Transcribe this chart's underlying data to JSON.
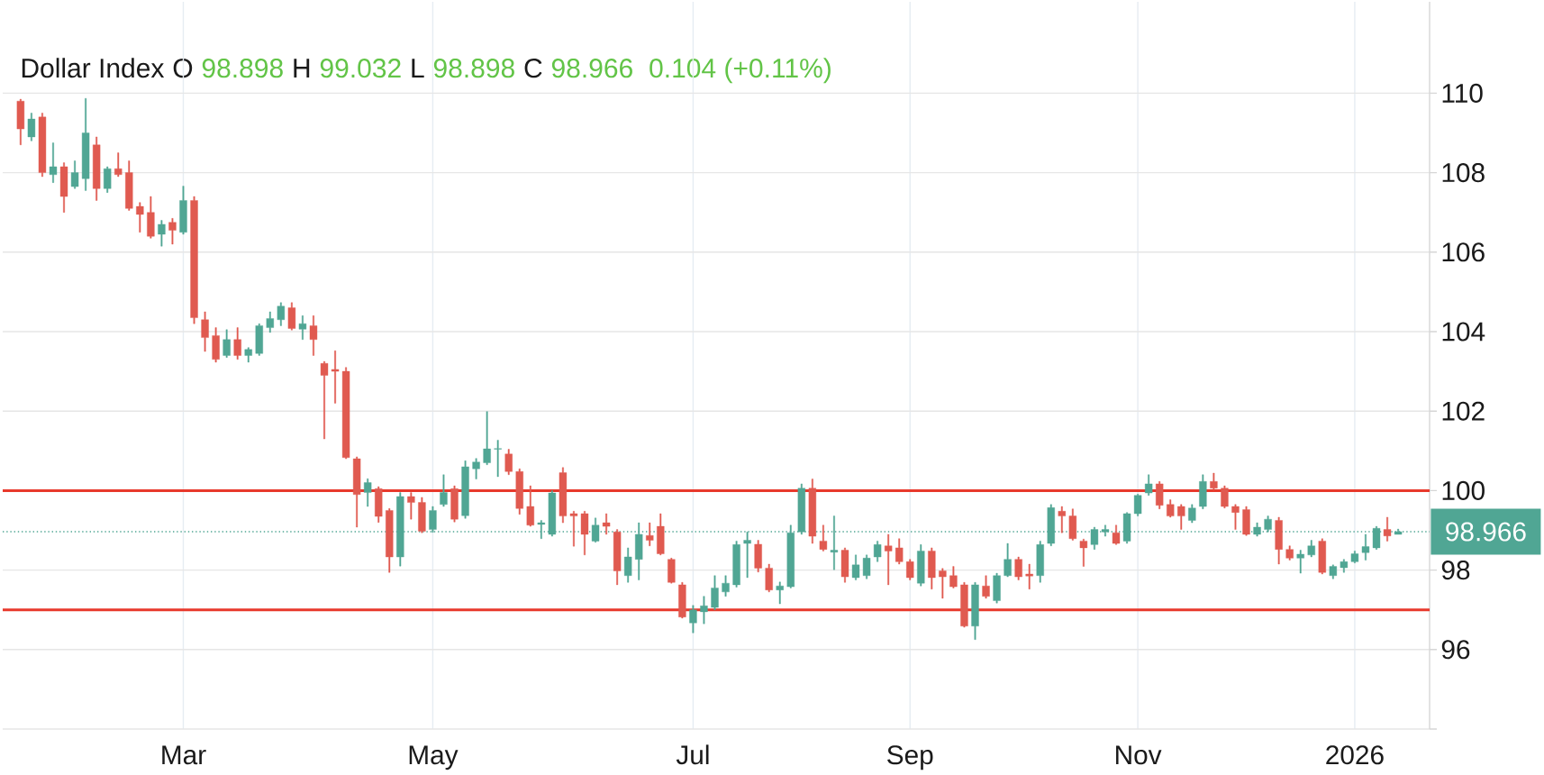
{
  "chart_data": {
    "type": "candlestick",
    "title": "Dollar Index",
    "annotations": [
      "O",
      "98.898",
      "H",
      "99.032",
      "L",
      "98.898",
      "C",
      "98.966",
      "0.104 (+0.11%)"
    ],
    "categories": [
      null,
      null,
      null,
      null,
      null,
      null,
      null,
      null,
      null,
      null,
      null,
      null,
      null,
      null,
      null,
      "Mar",
      null,
      null,
      null,
      null,
      null,
      null,
      null,
      null,
      null,
      null,
      null,
      null,
      null,
      null,
      null,
      null,
      null,
      null,
      null,
      null,
      null,
      null,
      "May",
      null,
      null,
      null,
      null,
      null,
      null,
      null,
      null,
      null,
      null,
      null,
      null,
      null,
      null,
      null,
      null,
      null,
      null,
      null,
      null,
      null,
      null,
      null,
      "Jul",
      null,
      null,
      null,
      null,
      null,
      null,
      null,
      null,
      null,
      null,
      null,
      null,
      null,
      null,
      null,
      null,
      null,
      null,
      null,
      "Sep",
      null,
      null,
      null,
      null,
      null,
      null,
      null,
      null,
      null,
      null,
      null,
      null,
      null,
      null,
      null,
      null,
      null,
      null,
      null,
      null,
      "Nov",
      null,
      null,
      null,
      null,
      null,
      null,
      null,
      null,
      null,
      null,
      null,
      null,
      null,
      null,
      null,
      null,
      null,
      null,
      null,
      "2026",
      null,
      null,
      null,
      null
    ],
    "ohlc": [
      [
        109.8,
        109.85,
        108.7,
        109.1
      ],
      [
        108.9,
        109.5,
        108.8,
        109.35
      ],
      [
        109.4,
        109.5,
        107.9,
        108.0
      ],
      [
        107.95,
        108.75,
        107.75,
        108.15
      ],
      [
        108.15,
        108.25,
        107.0,
        107.4
      ],
      [
        107.65,
        108.3,
        107.6,
        108.0
      ],
      [
        107.85,
        109.87,
        107.55,
        109.0
      ],
      [
        108.7,
        108.9,
        107.3,
        107.6
      ],
      [
        107.6,
        108.15,
        107.5,
        108.1
      ],
      [
        108.1,
        108.5,
        107.9,
        107.95
      ],
      [
        108.0,
        108.3,
        107.05,
        107.1
      ],
      [
        107.15,
        107.25,
        106.5,
        106.95
      ],
      [
        107.0,
        107.4,
        106.35,
        106.4
      ],
      [
        106.45,
        106.8,
        106.15,
        106.7
      ],
      [
        106.75,
        106.85,
        106.2,
        106.55
      ],
      [
        106.5,
        107.66,
        106.45,
        107.3
      ],
      [
        107.3,
        107.4,
        104.2,
        104.35
      ],
      [
        104.3,
        104.5,
        103.5,
        103.85
      ],
      [
        103.9,
        104.1,
        103.23,
        103.3
      ],
      [
        103.4,
        104.05,
        103.35,
        103.8
      ],
      [
        103.8,
        104.1,
        103.3,
        103.4
      ],
      [
        103.4,
        103.6,
        103.23,
        103.55
      ],
      [
        103.45,
        104.2,
        103.4,
        104.15
      ],
      [
        104.1,
        104.5,
        103.98,
        104.33
      ],
      [
        104.3,
        104.73,
        104.15,
        104.64
      ],
      [
        104.6,
        104.73,
        104.04,
        104.08
      ],
      [
        104.06,
        104.4,
        103.8,
        104.2
      ],
      [
        104.15,
        104.4,
        103.4,
        103.8
      ],
      [
        103.2,
        103.25,
        101.3,
        102.9
      ],
      [
        103.05,
        103.52,
        102.2,
        103.0
      ],
      [
        103.0,
        103.1,
        100.8,
        100.83
      ],
      [
        100.8,
        100.85,
        99.08,
        99.9
      ],
      [
        99.95,
        100.3,
        99.6,
        100.2
      ],
      [
        100.05,
        100.1,
        99.2,
        99.35
      ],
      [
        99.5,
        99.55,
        97.94,
        98.33
      ],
      [
        98.33,
        99.95,
        98.1,
        99.85
      ],
      [
        99.85,
        99.95,
        99.28,
        99.7
      ],
      [
        99.7,
        99.83,
        98.94,
        98.98
      ],
      [
        99.02,
        99.6,
        98.95,
        99.5
      ],
      [
        99.65,
        100.4,
        99.6,
        99.95
      ],
      [
        100.05,
        100.12,
        99.21,
        99.28
      ],
      [
        99.37,
        100.75,
        99.3,
        100.6
      ],
      [
        100.55,
        100.81,
        100.29,
        100.72
      ],
      [
        100.7,
        101.99,
        100.65,
        101.05
      ],
      [
        101.04,
        101.27,
        100.35,
        101.06
      ],
      [
        100.92,
        101.04,
        100.4,
        100.48
      ],
      [
        100.48,
        100.55,
        99.4,
        99.55
      ],
      [
        99.6,
        100.12,
        99.1,
        99.13
      ],
      [
        99.15,
        99.25,
        98.79,
        99.19
      ],
      [
        98.9,
        100.0,
        98.85,
        99.94
      ],
      [
        100.45,
        100.58,
        99.19,
        99.36
      ],
      [
        99.42,
        99.48,
        98.6,
        99.36
      ],
      [
        99.42,
        99.48,
        98.38,
        98.9
      ],
      [
        98.73,
        99.31,
        98.7,
        99.13
      ],
      [
        99.19,
        99.42,
        98.9,
        99.1
      ],
      [
        98.96,
        99.02,
        97.63,
        97.98
      ],
      [
        97.86,
        98.56,
        97.69,
        98.33
      ],
      [
        98.27,
        99.19,
        97.75,
        98.9
      ],
      [
        98.87,
        99.19,
        98.61,
        98.75
      ],
      [
        99.1,
        99.42,
        98.38,
        98.41
      ],
      [
        98.27,
        98.3,
        97.67,
        97.69
      ],
      [
        97.63,
        97.69,
        96.79,
        96.82
      ],
      [
        96.67,
        97.11,
        96.42,
        97.0
      ],
      [
        96.95,
        97.34,
        96.65,
        97.1
      ],
      [
        97.06,
        97.86,
        97.0,
        97.55
      ],
      [
        97.45,
        97.86,
        97.34,
        97.67
      ],
      [
        97.63,
        98.73,
        97.57,
        98.64
      ],
      [
        98.67,
        98.96,
        97.81,
        98.75
      ],
      [
        98.65,
        98.75,
        97.95,
        98.05
      ],
      [
        98.05,
        98.15,
        97.45,
        97.5
      ],
      [
        97.5,
        97.7,
        97.15,
        97.6
      ],
      [
        97.58,
        99.13,
        97.55,
        98.94
      ],
      [
        98.96,
        100.17,
        98.9,
        100.06
      ],
      [
        100.06,
        100.29,
        98.67,
        98.85
      ],
      [
        98.73,
        99.13,
        98.48,
        98.52
      ],
      [
        98.45,
        99.36,
        98.01,
        98.5
      ],
      [
        98.5,
        98.56,
        97.69,
        97.83
      ],
      [
        97.81,
        98.38,
        97.75,
        98.13
      ],
      [
        97.86,
        98.38,
        97.78,
        98.3
      ],
      [
        98.33,
        98.73,
        98.21,
        98.64
      ],
      [
        98.61,
        98.9,
        97.63,
        98.48
      ],
      [
        98.56,
        98.79,
        98.15,
        98.21
      ],
      [
        98.21,
        98.27,
        97.75,
        97.81
      ],
      [
        97.67,
        98.64,
        97.6,
        98.48
      ],
      [
        98.48,
        98.56,
        97.52,
        97.81
      ],
      [
        97.98,
        98.04,
        97.29,
        97.83
      ],
      [
        97.86,
        98.09,
        97.55,
        97.58
      ],
      [
        97.63,
        97.69,
        96.56,
        96.59
      ],
      [
        96.59,
        97.69,
        96.25,
        97.63
      ],
      [
        97.6,
        97.86,
        97.29,
        97.34
      ],
      [
        97.23,
        97.92,
        97.17,
        97.86
      ],
      [
        97.86,
        98.67,
        97.83,
        98.27
      ],
      [
        98.27,
        98.33,
        97.75,
        97.83
      ],
      [
        97.9,
        98.15,
        97.52,
        97.85
      ],
      [
        97.86,
        98.73,
        97.69,
        98.64
      ],
      [
        98.67,
        99.65,
        98.61,
        99.57
      ],
      [
        99.48,
        99.6,
        98.94,
        99.36
      ],
      [
        99.36,
        99.54,
        98.75,
        98.79
      ],
      [
        98.73,
        98.78,
        98.09,
        98.56
      ],
      [
        98.64,
        99.08,
        98.52,
        99.02
      ],
      [
        98.96,
        99.13,
        98.85,
        99.02
      ],
      [
        98.94,
        99.13,
        98.64,
        98.67
      ],
      [
        98.73,
        99.45,
        98.67,
        99.42
      ],
      [
        99.42,
        99.91,
        99.36,
        99.88
      ],
      [
        99.94,
        100.4,
        99.88,
        100.17
      ],
      [
        100.17,
        100.23,
        99.54,
        99.63
      ],
      [
        99.65,
        99.77,
        99.33,
        99.36
      ],
      [
        99.6,
        99.65,
        99.02,
        99.36
      ],
      [
        99.25,
        99.65,
        99.19,
        99.56
      ],
      [
        99.6,
        100.4,
        99.54,
        100.23
      ],
      [
        100.23,
        100.44,
        100.02,
        100.06
      ],
      [
        100.06,
        100.12,
        99.56,
        99.6
      ],
      [
        99.6,
        99.65,
        99.02,
        99.45
      ],
      [
        99.52,
        99.6,
        98.87,
        98.9
      ],
      [
        98.9,
        99.19,
        98.85,
        99.08
      ],
      [
        99.02,
        99.36,
        98.96,
        99.28
      ],
      [
        99.25,
        99.33,
        98.15,
        98.52
      ],
      [
        98.52,
        98.61,
        98.25,
        98.3
      ],
      [
        98.3,
        98.5,
        97.92,
        98.4
      ],
      [
        98.38,
        98.75,
        98.33,
        98.61
      ],
      [
        98.73,
        98.79,
        97.9,
        97.94
      ],
      [
        97.86,
        98.13,
        97.78,
        98.09
      ],
      [
        98.06,
        98.27,
        97.94,
        98.21
      ],
      [
        98.21,
        98.48,
        98.18,
        98.41
      ],
      [
        98.44,
        98.9,
        98.25,
        98.59
      ],
      [
        98.56,
        99.1,
        98.52,
        99.05
      ],
      [
        99.02,
        99.33,
        98.73,
        98.86
      ],
      [
        98.898,
        99.032,
        98.898,
        98.966
      ]
    ],
    "colors": [
      "#e05a50",
      "#50a694",
      "#e05a50",
      "#50a694",
      "#e05a50",
      "#50a694",
      "#50a694",
      "#e05a50",
      "#50a694",
      "#e05a50",
      "#e05a50",
      "#e05a50",
      "#e05a50",
      "#50a694",
      "#e05a50",
      "#50a694",
      "#e05a50",
      "#e05a50",
      "#e05a50",
      "#50a694",
      "#e05a50",
      "#50a694",
      "#50a694",
      "#50a694",
      "#50a694",
      "#e05a50",
      "#50a694",
      "#e05a50",
      "#e05a50",
      "#e05a50",
      "#e05a50",
      "#e05a50",
      "#50a694",
      "#e05a50",
      "#e05a50",
      "#50a694",
      "#e05a50",
      "#e05a50",
      "#50a694",
      "#50a694",
      "#e05a50",
      "#50a694",
      "#50a694",
      "#50a694",
      "#50a694",
      "#e05a50",
      "#e05a50",
      "#e05a50",
      "#50a694",
      "#50a694",
      "#e05a50",
      "#e05a50",
      "#e05a50",
      "#50a694",
      "#e05a50",
      "#e05a50",
      "#50a694",
      "#50a694",
      "#e05a50",
      "#e05a50",
      "#e05a50",
      "#e05a50",
      "#50a694",
      "#50a694",
      "#50a694",
      "#50a694",
      "#50a694",
      "#50a694",
      "#e05a50",
      "#e05a50",
      "#50a694",
      "#50a694",
      "#50a694",
      "#e05a50",
      "#e05a50",
      "#50a694",
      "#e05a50",
      "#50a694",
      "#50a694",
      "#50a694",
      "#e05a50",
      "#e05a50",
      "#e05a50",
      "#50a694",
      "#e05a50",
      "#e05a50",
      "#e05a50",
      "#e05a50",
      "#50a694",
      "#e05a50",
      "#50a694",
      "#50a694",
      "#e05a50",
      "#e05a50",
      "#50a694",
      "#50a694",
      "#e05a50",
      "#e05a50",
      "#e05a50",
      "#50a694",
      "#50a694",
      "#e05a50",
      "#50a694",
      "#50a694",
      "#50a694",
      "#e05a50",
      "#e05a50",
      "#e05a50",
      "#50a694",
      "#50a694",
      "#e05a50",
      "#e05a50",
      "#e05a50",
      "#e05a50",
      "#50a694",
      "#50a694",
      "#e05a50",
      "#e05a50",
      "#50a694",
      "#50a694",
      "#e05a50",
      "#50a694",
      "#50a694",
      "#50a694",
      "#50a694",
      "#50a694",
      "#e05a50",
      "#50a694"
    ],
    "ylim": [
      94,
      112.3
    ],
    "yticks": [
      {
        "value": 94,
        "label": null
      },
      96,
      98,
      100,
      102,
      104,
      106,
      108,
      110
    ],
    "grid": true,
    "ref_lines": [
      {
        "axis": "y",
        "value": 100,
        "color": "#e8392c",
        "line_style": "solid"
      },
      {
        "axis": "y",
        "value": 97,
        "color": "#e8392c",
        "line_style": "solid"
      },
      {
        "axis": "y",
        "value": 98.966,
        "label": "98.966",
        "color": "#50a694",
        "line_style": "dotted"
      }
    ]
  }
}
